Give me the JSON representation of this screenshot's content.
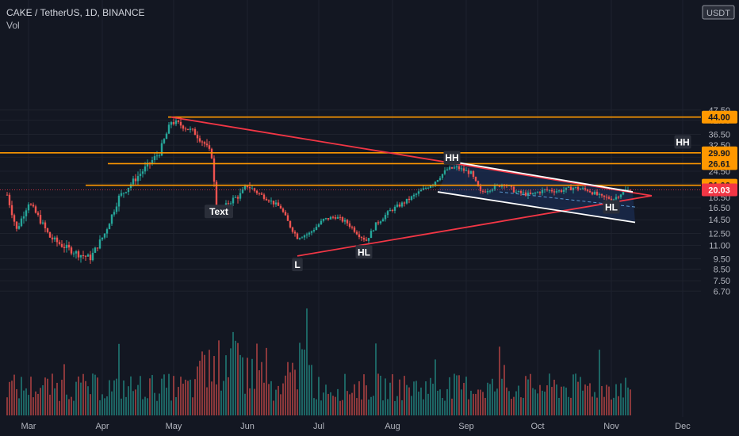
{
  "header": {
    "symbol": "CAKE / TetherUS, 1D, BINANCE",
    "volume_label": "Vol"
  },
  "currency": "USDT",
  "colors": {
    "background": "#131722",
    "up": "#26a69a",
    "down": "#ef5350",
    "level": "#ff9800",
    "trend": "#f23645",
    "channel": "#ffffff",
    "channel_fill": "#1e3a6e",
    "current": "#f23645"
  },
  "chart_data": {
    "type": "candlestick",
    "y_scale": "log",
    "y_ticks": [
      "47.50",
      "42.50",
      "36.50",
      "32.50",
      "28.50",
      "24.50",
      "21.50",
      "18.50",
      "16.50",
      "14.50",
      "12.50",
      "11.00",
      "9.50",
      "8.50",
      "7.50",
      "6.70"
    ],
    "x_ticks": [
      "Mar",
      "Apr",
      "May",
      "Jun",
      "Jul",
      "Aug",
      "Sep",
      "Oct",
      "Nov",
      "Dec"
    ],
    "price_labels": [
      {
        "value": "44.00",
        "kind": "level"
      },
      {
        "value": "29.90",
        "kind": "level"
      },
      {
        "value": "26.61",
        "kind": "level"
      },
      {
        "value": "21.06",
        "kind": "level"
      },
      {
        "value": "20.03",
        "kind": "current"
      }
    ],
    "horizontal_levels": [
      44.0,
      29.9,
      26.61,
      21.06
    ],
    "current_price": 20.03,
    "annotations": [
      {
        "text": "HH",
        "date": "2021-08-26",
        "price": 28.3
      },
      {
        "text": "HL",
        "date": "2021-07-20",
        "price": 10.2
      },
      {
        "text": "L",
        "date": "2021-06-22",
        "price": 8.9
      },
      {
        "text": "HL",
        "date": "2021-11-01",
        "price": 16.6
      },
      {
        "text": "Text",
        "date": "2021-05-20",
        "price": 15.8
      },
      {
        "text": "HH",
        "date": "2021-12-01",
        "price": 33.5
      }
    ],
    "trendlines": [
      {
        "from": [
          "2021-04-30",
          44.0
        ],
        "to": [
          "2021-11-18",
          18.8
        ]
      },
      {
        "from": [
          "2021-06-22",
          9.8
        ],
        "to": [
          "2021-11-18",
          18.8
        ]
      }
    ],
    "channel": {
      "upper": {
        "from": [
          "2021-08-26",
          27.2
        ],
        "to": [
          "2021-11-10",
          19.6
        ]
      },
      "lower": {
        "from": [
          "2021-08-20",
          19.6
        ],
        "to": [
          "2021-11-11",
          14.1
        ]
      }
    },
    "price_keypoints": [
      [
        "2021-02-20",
        19.0
      ],
      [
        "2021-02-24",
        13.0
      ],
      [
        "2021-03-01",
        17.5
      ],
      [
        "2021-03-05",
        15.0
      ],
      [
        "2021-03-10",
        12.0
      ],
      [
        "2021-03-15",
        11.0
      ],
      [
        "2021-03-22",
        10.0
      ],
      [
        "2021-03-27",
        9.6
      ],
      [
        "2021-04-02",
        12.5
      ],
      [
        "2021-04-08",
        18.5
      ],
      [
        "2021-04-14",
        22.0
      ],
      [
        "2021-04-20",
        26.0
      ],
      [
        "2021-04-25",
        30.0
      ],
      [
        "2021-04-30",
        42.0
      ],
      [
        "2021-05-05",
        40.0
      ],
      [
        "2021-05-10",
        37.0
      ],
      [
        "2021-05-14",
        33.0
      ],
      [
        "2021-05-17",
        29.0
      ],
      [
        "2021-05-19",
        16.0
      ],
      [
        "2021-05-21",
        15.5
      ],
      [
        "2021-05-24",
        17.5
      ],
      [
        "2021-05-29",
        19.0
      ],
      [
        "2021-06-01",
        21.0
      ],
      [
        "2021-06-05",
        19.5
      ],
      [
        "2021-06-10",
        18.0
      ],
      [
        "2021-06-15",
        16.5
      ],
      [
        "2021-06-19",
        13.5
      ],
      [
        "2021-06-22",
        12.0
      ],
      [
        "2021-06-27",
        12.5
      ],
      [
        "2021-07-03",
        14.5
      ],
      [
        "2021-07-08",
        15.0
      ],
      [
        "2021-07-13",
        14.0
      ],
      [
        "2021-07-18",
        12.3
      ],
      [
        "2021-07-21",
        11.6
      ],
      [
        "2021-07-25",
        13.8
      ],
      [
        "2021-07-31",
        16.0
      ],
      [
        "2021-08-06",
        17.5
      ],
      [
        "2021-08-12",
        19.5
      ],
      [
        "2021-08-18",
        21.5
      ],
      [
        "2021-08-24",
        25.0
      ],
      [
        "2021-08-28",
        25.5
      ],
      [
        "2021-09-03",
        24.0
      ],
      [
        "2021-09-07",
        19.5
      ],
      [
        "2021-09-12",
        20.5
      ],
      [
        "2021-09-17",
        21.5
      ],
      [
        "2021-09-22",
        19.5
      ],
      [
        "2021-09-28",
        19.0
      ],
      [
        "2021-10-04",
        20.0
      ],
      [
        "2021-10-10",
        19.8
      ],
      [
        "2021-10-16",
        20.5
      ],
      [
        "2021-10-22",
        20.0
      ],
      [
        "2021-10-28",
        18.5
      ],
      [
        "2021-11-02",
        18.2
      ],
      [
        "2021-11-07",
        20.0
      ],
      [
        "2021-11-09",
        20.03
      ]
    ]
  }
}
